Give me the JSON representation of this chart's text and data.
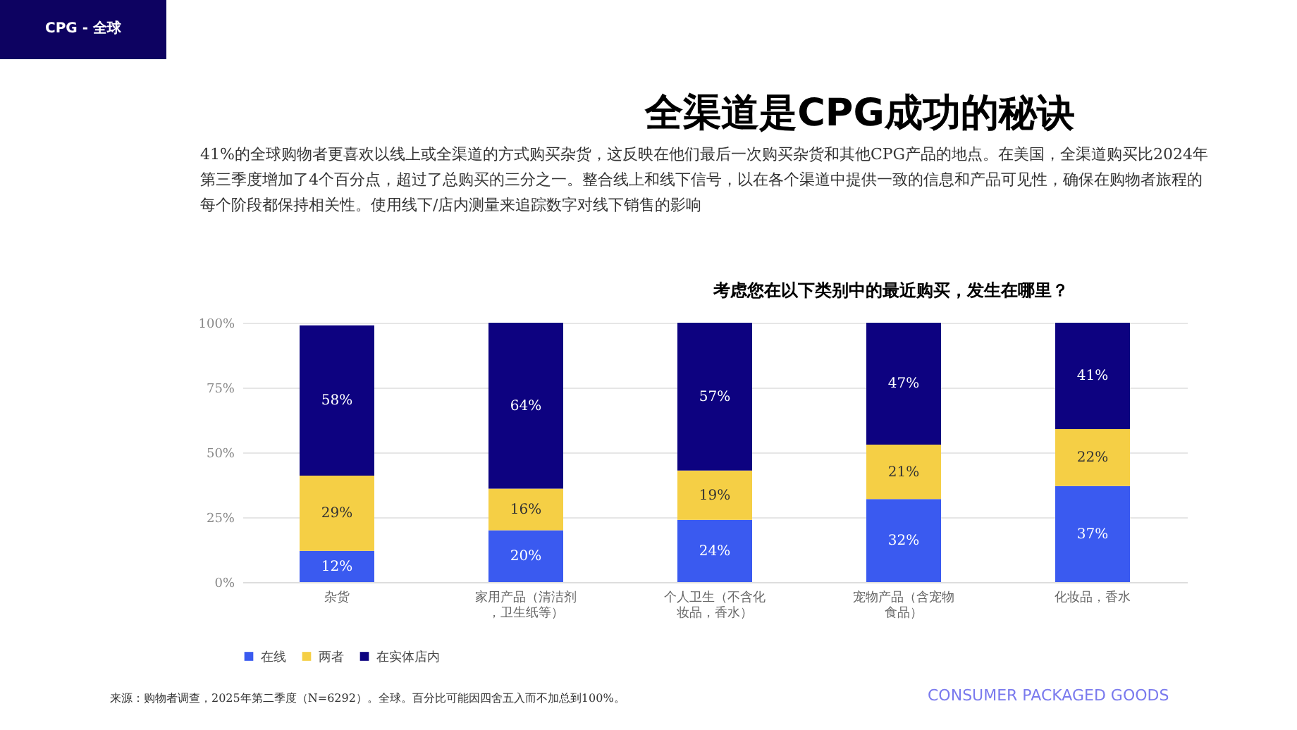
{
  "chart_data": {
    "type": "bar",
    "title": "全渠道是CPG成功的秘诀",
    "subtitle": "考虑您在以下类别中的最近购买，发生在哪里？",
    "annotations": [
      "CPG - 全球",
      "41%的全球购物者更喜欢以线上或全渠道的方式购买杂货，这反映在他们最后一次购买杂货和其他CPG产品的地点。在美国，全渠道购买比2024年第三季度增加了4个百分点，超过了总购买的三分之一。整合线上和线下信号，以在各个渠道中提供一致的信息和产品可见性，确保在购物者旅程的每个阶段都保持相关性。使用线下/店内测量来追踪数字对线下销售的影响",
      "来源：购物者调查，2025年第二季度（N=6292）。全球。百分比可能因四舍五入而不加总到100%。",
      "CONSUMER PACKAGED GOODS"
    ],
    "categories": [
      "杂货",
      "家用产品（清洁剂，卫生纸等）",
      "个人卫生（不含化妆品，香水）",
      "宠物产品（含宠物食品）",
      "化妆品，香水"
    ],
    "stacked": true,
    "series": [
      {
        "name": "在线",
        "color": "#3a5af0",
        "values": [
          12,
          20,
          24,
          32,
          37
        ],
        "value_labels": [
          "12%",
          "20%",
          "24%",
          "32%",
          "37%"
        ]
      },
      {
        "name": "两者",
        "color": "#f5cf45",
        "values": [
          29,
          16,
          19,
          21,
          22
        ],
        "value_labels": [
          "29%",
          "16%",
          "19%",
          "21%",
          "22%"
        ]
      },
      {
        "name": "在实体店内",
        "color": "#0d0280",
        "values": [
          58,
          64,
          57,
          47,
          41
        ],
        "value_labels": [
          "58%",
          "64%",
          "57%",
          "47%",
          "41%"
        ]
      }
    ],
    "ylim": [
      0,
      100
    ],
    "yticks": [
      {
        "value": 0,
        "label": "0%"
      },
      {
        "value": 25,
        "label": "25%"
      },
      {
        "value": 50,
        "label": "50%"
      },
      {
        "value": 75,
        "label": "75%"
      },
      {
        "value": 100,
        "label": "100%"
      }
    ],
    "grid": "y",
    "legend": "bottom"
  }
}
